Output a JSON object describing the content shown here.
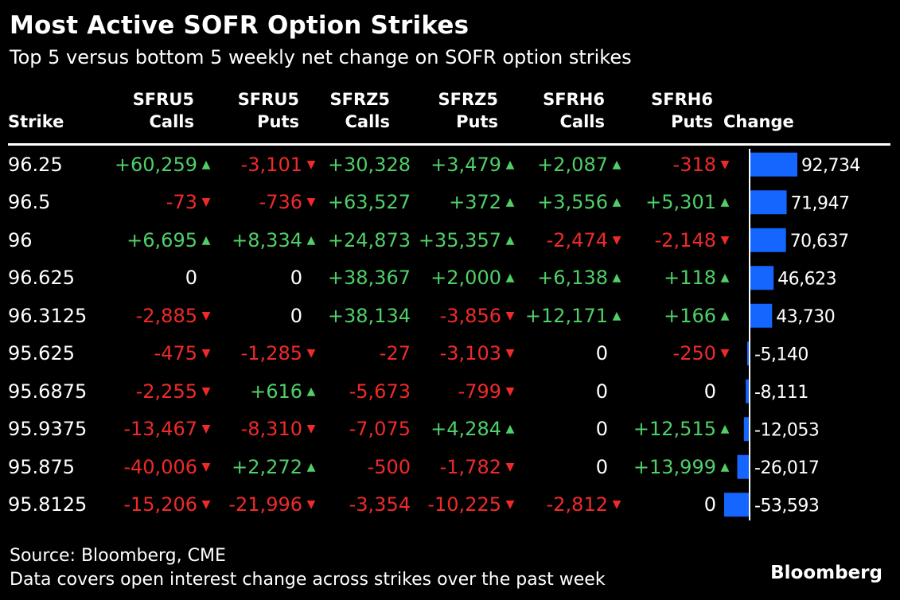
{
  "title": "Most Active SOFR Option Strikes",
  "subtitle": "Top 5 versus bottom 5 weekly net change on SOFR option strikes",
  "source": "Source: Bloomberg, CME",
  "note": "Data covers open interest change across strikes over the past week",
  "logo": "Bloomberg",
  "colors": {
    "positive": "#4fcf68",
    "negative": "#ef2a2a",
    "bar": "#1565ff",
    "background": "#000000"
  },
  "columns": [
    {
      "line1": "",
      "line2": "Strike"
    },
    {
      "line1": "SFRU5",
      "line2": "Calls"
    },
    {
      "line1": "SFRU5",
      "line2": "Puts"
    },
    {
      "line1": "SFRZ5",
      "line2": "Calls"
    },
    {
      "line1": "SFRZ5",
      "line2": "Puts"
    },
    {
      "line1": "SFRH6",
      "line2": "Calls"
    },
    {
      "line1": "SFRH6",
      "line2": "Puts"
    },
    {
      "line1": "",
      "line2": "Change"
    }
  ],
  "chart_data": {
    "type": "table",
    "title": "Most Active SOFR Option Strikes",
    "subtitle": "Top 5 versus bottom 5 weekly net change on SOFR option strikes",
    "columns": [
      "Strike",
      "SFRU5 Calls",
      "SFRU5 Puts",
      "SFRZ5 Calls",
      "SFRZ5 Puts",
      "SFRH6 Calls",
      "SFRH6 Puts",
      "Change"
    ],
    "rows": [
      {
        "strike": "96.25",
        "cells": [
          60259,
          -3101,
          30328,
          3479,
          2087,
          -318
        ],
        "change": 92734,
        "change_label": "92,734"
      },
      {
        "strike": "96.5",
        "cells": [
          -73,
          -736,
          63527,
          372,
          3556,
          5301
        ],
        "change": 71947,
        "change_label": "71,947"
      },
      {
        "strike": "96",
        "cells": [
          6695,
          8334,
          24873,
          35357,
          -2474,
          -2148
        ],
        "change": 70637,
        "change_label": "70,637"
      },
      {
        "strike": "96.625",
        "cells": [
          0,
          0,
          38367,
          2000,
          6138,
          118
        ],
        "change": 46623,
        "change_label": "46,623"
      },
      {
        "strike": "96.3125",
        "cells": [
          -2885,
          0,
          38134,
          -3856,
          12171,
          166
        ],
        "change": 43730,
        "change_label": "43,730"
      },
      {
        "strike": "95.625",
        "cells": [
          -475,
          -1285,
          -27,
          -3103,
          0,
          -250
        ],
        "change": -5140,
        "change_label": "-5,140"
      },
      {
        "strike": "95.6875",
        "cells": [
          -2255,
          616,
          -5673,
          -799,
          0,
          0
        ],
        "change": -8111,
        "change_label": "-8,111"
      },
      {
        "strike": "95.9375",
        "cells": [
          -13467,
          -8310,
          -7075,
          4284,
          0,
          12515
        ],
        "change": -12053,
        "change_label": "-12,053"
      },
      {
        "strike": "95.875",
        "cells": [
          -40006,
          2272,
          -500,
          -1782,
          0,
          13999
        ],
        "change": -26017,
        "change_label": "-26,017"
      },
      {
        "strike": "95.8125",
        "cells": [
          -15206,
          -21996,
          -3354,
          -10225,
          -2812,
          0
        ],
        "change": -53593,
        "change_label": "-53,593"
      }
    ],
    "cell_labels": [
      [
        "+60,259",
        "-3,101",
        "+30,328",
        "+3,479",
        "+2,087",
        "-318"
      ],
      [
        "-73",
        "-736",
        "+63,527",
        "+372",
        "+3,556",
        "+5,301"
      ],
      [
        "+6,695",
        "+8,334",
        "+24,873",
        "+35,357",
        "-2,474",
        "-2,148"
      ],
      [
        "0",
        "0",
        "+38,367",
        "+2,000",
        "+6,138",
        "+118"
      ],
      [
        "-2,885",
        "0",
        "+38,134",
        "-3,856",
        "+12,171",
        "+166"
      ],
      [
        "-475",
        "-1,285",
        "-27",
        "-3,103",
        "0",
        "-250"
      ],
      [
        "-2,255",
        "+616",
        "-5,673",
        "-799",
        "0",
        "0"
      ],
      [
        "-13,467",
        "-8,310",
        "-7,075",
        "+4,284",
        "0",
        "+12,515"
      ],
      [
        "-40,006",
        "+2,272",
        "-500",
        "-1,782",
        "0",
        "+13,999"
      ],
      [
        "-15,206",
        "-21,996",
        "-3,354",
        "-10,225",
        "-2,812",
        "0"
      ]
    ],
    "arrow_columns": [
      true,
      true,
      false,
      true,
      true,
      true
    ]
  }
}
